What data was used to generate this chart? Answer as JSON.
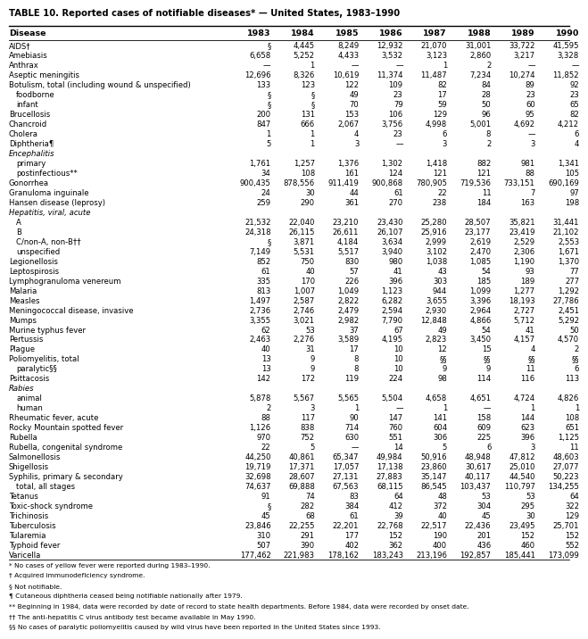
{
  "title": "TABLE 10. Reported cases of notifiable diseases* — United States, 1983–1990",
  "columns": [
    "Disease",
    "1983",
    "1984",
    "1985",
    "1986",
    "1987",
    "1988",
    "1989",
    "1990"
  ],
  "rows": [
    [
      "AIDS†",
      "§",
      "4,445",
      "8,249",
      "12,932",
      "21,070",
      "31,001",
      "33,722",
      "41,595"
    ],
    [
      "Amebiasis",
      "6,658",
      "5,252",
      "4,433",
      "3,532",
      "3,123",
      "2,860",
      "3,217",
      "3,328"
    ],
    [
      "Anthrax",
      "—",
      "1",
      "—",
      "—",
      "1",
      "2",
      "—",
      "—"
    ],
    [
      "Aseptic meningitis",
      "12,696",
      "8,326",
      "10,619",
      "11,374",
      "11,487",
      "7,234",
      "10,274",
      "11,852"
    ],
    [
      "Botulism, total (including wound & unspecified)",
      "133",
      "123",
      "122",
      "109",
      "82",
      "84",
      "89",
      "92"
    ],
    [
      "  foodborne",
      "§",
      "§",
      "49",
      "23",
      "17",
      "28",
      "23",
      "23"
    ],
    [
      "  infant",
      "§",
      "§",
      "70",
      "79",
      "59",
      "50",
      "60",
      "65"
    ],
    [
      "Brucellosis",
      "200",
      "131",
      "153",
      "106",
      "129",
      "96",
      "95",
      "82"
    ],
    [
      "Chancroid",
      "847",
      "666",
      "2,067",
      "3,756",
      "4,998",
      "5,001",
      "4,692",
      "4,212"
    ],
    [
      "Cholera",
      "1",
      "1",
      "4",
      "23",
      "6",
      "8",
      "—",
      "6"
    ],
    [
      "Diphtheria¶",
      "5",
      "1",
      "3",
      "—",
      "3",
      "2",
      "3",
      "4"
    ],
    [
      "Encephalitis",
      "",
      "",
      "",
      "",
      "",
      "",
      "",
      ""
    ],
    [
      "  primary",
      "1,761",
      "1,257",
      "1,376",
      "1,302",
      "1,418",
      "882",
      "981",
      "1,341"
    ],
    [
      "  postinfectious**",
      "34",
      "108",
      "161",
      "124",
      "121",
      "121",
      "88",
      "105"
    ],
    [
      "Gonorrhea",
      "900,435",
      "878,556",
      "911,419",
      "900,868",
      "780,905",
      "719,536",
      "733,151",
      "690,169"
    ],
    [
      "Granuloma inguinale",
      "24",
      "30",
      "44",
      "61",
      "22",
      "11",
      "7",
      "97"
    ],
    [
      "Hansen disease (leprosy)",
      "259",
      "290",
      "361",
      "270",
      "238",
      "184",
      "163",
      "198"
    ],
    [
      "Hepatitis, viral, acute",
      "",
      "",
      "",
      "",
      "",
      "",
      "",
      ""
    ],
    [
      "  A",
      "21,532",
      "22,040",
      "23,210",
      "23,430",
      "25,280",
      "28,507",
      "35,821",
      "31,441"
    ],
    [
      "  B",
      "24,318",
      "26,115",
      "26,611",
      "26,107",
      "25,916",
      "23,177",
      "23,419",
      "21,102"
    ],
    [
      "  C/non-A, non-B††",
      "§",
      "3,871",
      "4,184",
      "3,634",
      "2,999",
      "2,619",
      "2,529",
      "2,553"
    ],
    [
      "  unspecified",
      "7,149",
      "5,531",
      "5,517",
      "3,940",
      "3,102",
      "2,470",
      "2,306",
      "1,671"
    ],
    [
      "Legionellosis",
      "852",
      "750",
      "830",
      "980",
      "1,038",
      "1,085",
      "1,190",
      "1,370"
    ],
    [
      "Leptospirosis",
      "61",
      "40",
      "57",
      "41",
      "43",
      "54",
      "93",
      "77"
    ],
    [
      "Lymphogranuloma venereum",
      "335",
      "170",
      "226",
      "396",
      "303",
      "185",
      "189",
      "277"
    ],
    [
      "Malaria",
      "813",
      "1,007",
      "1,049",
      "1,123",
      "944",
      "1,099",
      "1,277",
      "1,292"
    ],
    [
      "Measles",
      "1,497",
      "2,587",
      "2,822",
      "6,282",
      "3,655",
      "3,396",
      "18,193",
      "27,786"
    ],
    [
      "Meningococcal disease, invasive",
      "2,736",
      "2,746",
      "2,479",
      "2,594",
      "2,930",
      "2,964",
      "2,727",
      "2,451"
    ],
    [
      "Mumps",
      "3,355",
      "3,021",
      "2,982",
      "7,790",
      "12,848",
      "4,866",
      "5,712",
      "5,292"
    ],
    [
      "Murine typhus fever",
      "62",
      "53",
      "37",
      "67",
      "49",
      "54",
      "41",
      "50"
    ],
    [
      "Pertussis",
      "2,463",
      "2,276",
      "3,589",
      "4,195",
      "2,823",
      "3,450",
      "4,157",
      "4,570"
    ],
    [
      "Plague",
      "40",
      "31",
      "17",
      "10",
      "12",
      "15",
      "4",
      "2"
    ],
    [
      "Poliomyelitis, total",
      "13",
      "9",
      "8",
      "10",
      "§§",
      "§§",
      "§§",
      "§§"
    ],
    [
      "  paralytic§§",
      "13",
      "9",
      "8",
      "10",
      "9",
      "9",
      "11",
      "6"
    ],
    [
      "Psittacosis",
      "142",
      "172",
      "119",
      "224",
      "98",
      "114",
      "116",
      "113"
    ],
    [
      "Rabies",
      "",
      "",
      "",
      "",
      "",
      "",
      "",
      ""
    ],
    [
      "  animal",
      "5,878",
      "5,567",
      "5,565",
      "5,504",
      "4,658",
      "4,651",
      "4,724",
      "4,826"
    ],
    [
      "  human",
      "2",
      "3",
      "1",
      "—",
      "1",
      "—",
      "1",
      "1"
    ],
    [
      "Rheumatic fever, acute",
      "88",
      "117",
      "90",
      "147",
      "141",
      "158",
      "144",
      "108"
    ],
    [
      "Rocky Mountain spotted fever",
      "1,126",
      "838",
      "714",
      "760",
      "604",
      "609",
      "623",
      "651"
    ],
    [
      "Rubella",
      "970",
      "752",
      "630",
      "551",
      "306",
      "225",
      "396",
      "1,125"
    ],
    [
      "Rubella, congenital syndrome",
      "22",
      "5",
      "—",
      "14",
      "5",
      "6",
      "3",
      "11"
    ],
    [
      "Salmonellosis",
      "44,250",
      "40,861",
      "65,347",
      "49,984",
      "50,916",
      "48,948",
      "47,812",
      "48,603"
    ],
    [
      "Shigellosis",
      "19,719",
      "17,371",
      "17,057",
      "17,138",
      "23,860",
      "30,617",
      "25,010",
      "27,077"
    ],
    [
      "Syphilis, primary & secondary",
      "32,698",
      "28,607",
      "27,131",
      "27,883",
      "35,147",
      "40,117",
      "44,540",
      "50,223"
    ],
    [
      "  total, all stages",
      "74,637",
      "69,888",
      "67,563",
      "68,115",
      "86,545",
      "103,437",
      "110,797",
      "134,255"
    ],
    [
      "Tetanus",
      "91",
      "74",
      "83",
      "64",
      "48",
      "53",
      "53",
      "64"
    ],
    [
      "Toxic-shock syndrome",
      "§",
      "282",
      "384",
      "412",
      "372",
      "304",
      "295",
      "322"
    ],
    [
      "Trichinosis",
      "45",
      "68",
      "61",
      "39",
      "40",
      "45",
      "30",
      "129"
    ],
    [
      "Tuberculosis",
      "23,846",
      "22,255",
      "22,201",
      "22,768",
      "22,517",
      "22,436",
      "23,495",
      "25,701"
    ],
    [
      "Tularemia",
      "310",
      "291",
      "177",
      "152",
      "190",
      "201",
      "152",
      "152"
    ],
    [
      "Typhoid fever",
      "507",
      "390",
      "402",
      "362",
      "400",
      "436",
      "460",
      "552"
    ],
    [
      "Varicella",
      "177,462",
      "221,983",
      "178,162",
      "183,243",
      "213,196",
      "192,857",
      "185,441",
      "173,099"
    ]
  ],
  "footnotes": [
    "* No cases of yellow fever were reported during 1983–1990.",
    "† Acquired immunodeficiency syndrome.",
    "§ Not notifiable.",
    "¶ Cutaneous diphtheria ceased being notifiable nationally after 1979.",
    "** Beginning in 1984, data were recorded by date of record to state health departments. Before 1984, data were recorded by onset date.",
    "†† The anti-hepatitis C virus antibody test became available in May 1990.",
    "§§ No cases of paralytic poliomyelitis caused by wild virus have been reported in the United States since 1993."
  ]
}
